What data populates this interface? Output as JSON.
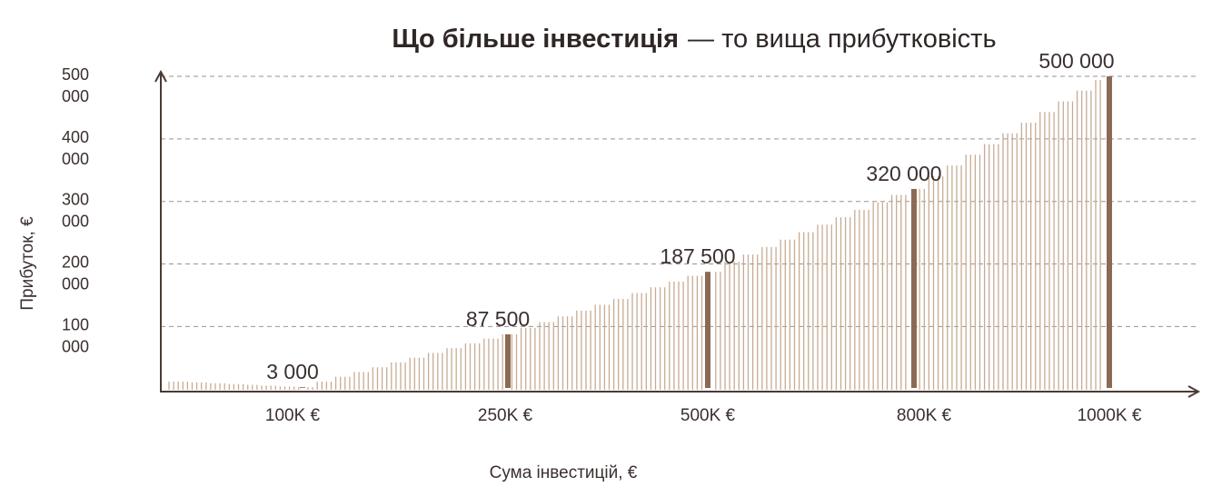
{
  "chart_data": {
    "type": "bar",
    "title_bold": "Що більше інвестиція",
    "title_rest": "— то вища прибутковість",
    "xlabel": "Сума інвестицій, €",
    "ylabel": "Прибуток, €",
    "y_ticks": [
      {
        "value": 100000,
        "line1": "100",
        "line2": "000"
      },
      {
        "value": 200000,
        "line1": "200",
        "line2": "000"
      },
      {
        "value": 300000,
        "line1": "300",
        "line2": "000"
      },
      {
        "value": 400000,
        "line1": "400",
        "line2": "000"
      },
      {
        "value": 500000,
        "line1": "500",
        "line2": "000"
      }
    ],
    "ylim": [
      -4000,
      500000
    ],
    "grid": true,
    "highlights": [
      {
        "tick": "100K €",
        "value": 3000,
        "label": "3 000"
      },
      {
        "tick": "250K €",
        "value": 87500,
        "label": "87 500"
      },
      {
        "tick": "500K €",
        "value": 187500,
        "label": "187 500"
      },
      {
        "tick": "800K €",
        "value": 320000,
        "label": "320 000"
      },
      {
        "tick": "1000K €",
        "value": 500000,
        "label": "500 000"
      }
    ],
    "colors": {
      "axis": "#4a3b35",
      "grid": "#9a928d",
      "thin_bar": "#c7ab93",
      "highlight_bar": "#8b6a55",
      "text": "#3b2f2f"
    }
  }
}
